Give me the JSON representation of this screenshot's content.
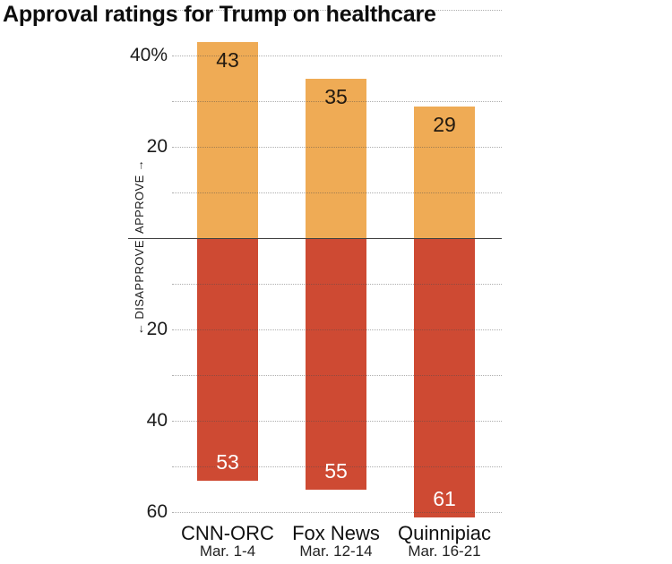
{
  "axis": {
    "approve_label": "APPROVE →",
    "disapprove_label": "← DISAPPROVE"
  },
  "colors": {
    "approve_bar": "#efab55",
    "disapprove_bar": "#ce4a33",
    "approve_value_text": "#231a10",
    "disapprove_value_text": "#ffffff",
    "gridline": "#9b9b9b",
    "zero_line": "#3e3e3e",
    "title_text": "#0d0d0d"
  },
  "chart_data": {
    "type": "bar",
    "variant": "diverging-vertical",
    "title": "Approval ratings for Trump on healthcare",
    "categories": [
      "CNN-ORC",
      "Fox News",
      "Quinnipiac"
    ],
    "category_sublabels": [
      "Mar. 1-4",
      "Mar. 12-14",
      "Mar. 16-21"
    ],
    "series": [
      {
        "name": "Approve",
        "direction": "up",
        "color": "#efab55",
        "label_color": "#231a10",
        "values": [
          43,
          35,
          29
        ]
      },
      {
        "name": "Disapprove",
        "direction": "down",
        "color": "#ce4a33",
        "label_color": "#ffffff",
        "values": [
          53,
          55,
          61
        ]
      }
    ],
    "axis_labels": {
      "up": "APPROVE →",
      "down": "← DISAPPROVE"
    },
    "gridlines": [
      {
        "side": "approve",
        "value": 50,
        "label": ""
      },
      {
        "side": "approve",
        "value": 40,
        "label": "40%"
      },
      {
        "side": "approve",
        "value": 30,
        "label": ""
      },
      {
        "side": "approve",
        "value": 20,
        "label": "20"
      },
      {
        "side": "approve",
        "value": 10,
        "label": ""
      },
      {
        "side": "disapprove",
        "value": 10,
        "label": ""
      },
      {
        "side": "disapprove",
        "value": 20,
        "label": "20"
      },
      {
        "side": "disapprove",
        "value": 30,
        "label": ""
      },
      {
        "side": "disapprove",
        "value": 40,
        "label": "40"
      },
      {
        "side": "disapprove",
        "value": 50,
        "label": ""
      },
      {
        "side": "disapprove",
        "value": 60,
        "label": "60"
      }
    ],
    "ylim_up": [
      0,
      50
    ],
    "ylim_down": [
      0,
      62
    ],
    "grid": true,
    "legend": false
  }
}
